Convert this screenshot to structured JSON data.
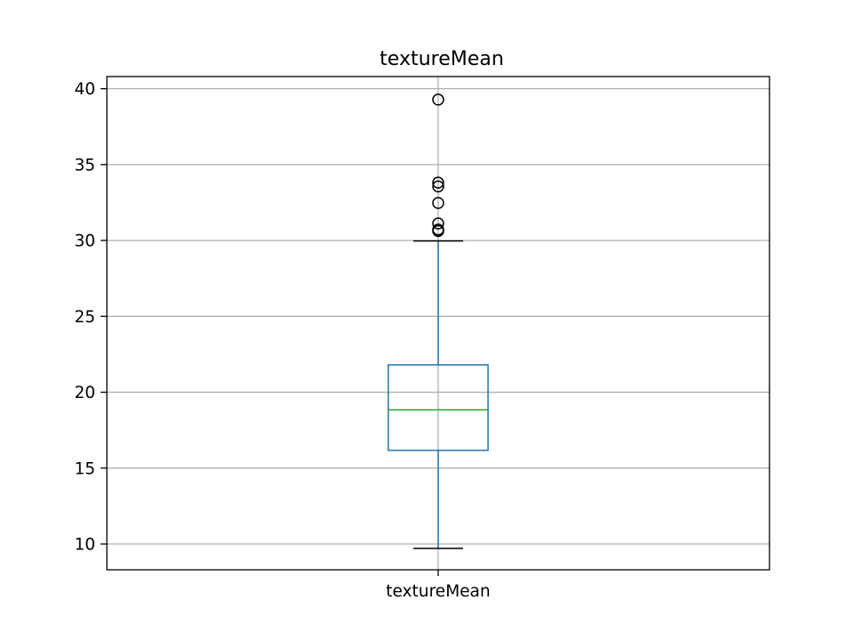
{
  "chart_data": {
    "type": "box",
    "title": "textureMean",
    "xlabel": "",
    "ylabel": "",
    "categories": [
      "textureMean"
    ],
    "ylim": [
      8.3,
      40.8
    ],
    "yticks": [
      10,
      15,
      20,
      25,
      30,
      35,
      40
    ],
    "grid": true,
    "box": {
      "whisker_low": 9.71,
      "q1": 16.17,
      "median": 18.84,
      "q3": 21.8,
      "whisker_high": 29.97,
      "outliers": [
        30.62,
        30.72,
        31.12,
        32.47,
        33.56,
        33.81,
        39.28
      ]
    },
    "colors": {
      "box": "#1f77b4",
      "median": "#2ca02c",
      "grid": "#b0b0b0",
      "outlier": "#000000"
    }
  }
}
